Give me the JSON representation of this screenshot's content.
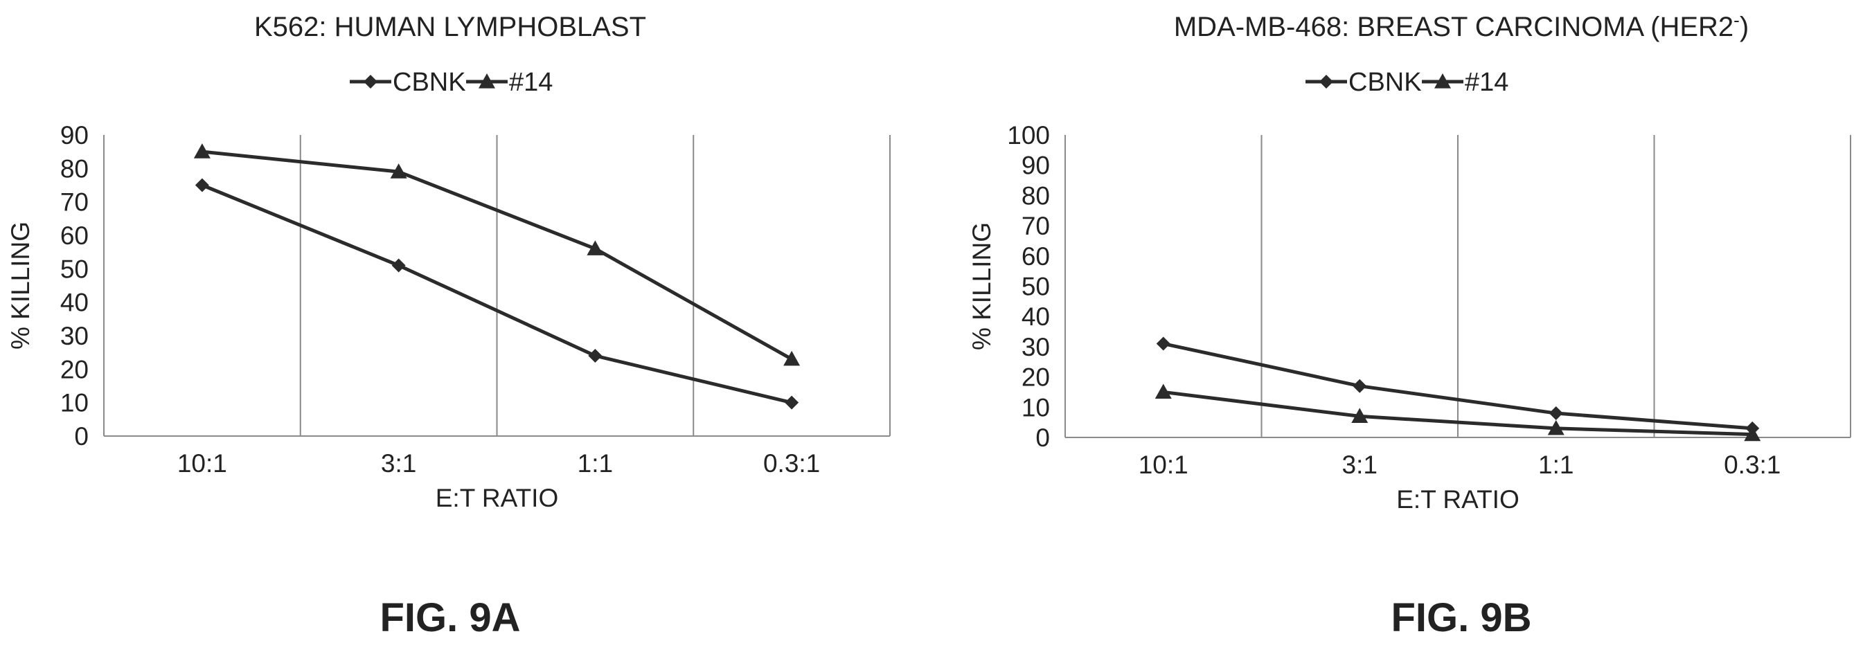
{
  "chart_data": [
    {
      "type": "line",
      "title": "K562: HUMAN LYMPHOBLAST",
      "xlabel": "E:T RATIO",
      "ylabel": "% KILLING",
      "categories": [
        "10:1",
        "3:1",
        "1:1",
        "0.3:1"
      ],
      "ylim": [
        0,
        90
      ],
      "yticks": [
        0,
        10,
        20,
        30,
        40,
        50,
        60,
        70,
        80,
        90
      ],
      "grid": "vertical",
      "legend_position": "top-center",
      "series": [
        {
          "name": "CBNK",
          "marker": "diamond",
          "values": [
            75,
            51,
            24,
            10
          ]
        },
        {
          "name": "#14",
          "marker": "triangle",
          "values": [
            85,
            79,
            56,
            23
          ]
        }
      ],
      "figure_label": "FIG. 9A"
    },
    {
      "type": "line",
      "title": "MDA-MB-468: BREAST CARCINOMA (HER2",
      "title_superscript": "-",
      "title_suffix": ")",
      "xlabel": "E:T RATIO",
      "ylabel": "% KILLING",
      "categories": [
        "10:1",
        "3:1",
        "1:1",
        "0.3:1"
      ],
      "ylim": [
        0,
        100
      ],
      "yticks": [
        0,
        10,
        20,
        30,
        40,
        50,
        60,
        70,
        80,
        90,
        100
      ],
      "grid": "vertical",
      "legend_position": "top-center",
      "series": [
        {
          "name": "CBNK",
          "marker": "diamond",
          "values": [
            31,
            17,
            8,
            3
          ]
        },
        {
          "name": "#14",
          "marker": "triangle",
          "values": [
            15,
            7,
            3,
            1
          ]
        }
      ],
      "figure_label": "FIG. 9B"
    }
  ]
}
